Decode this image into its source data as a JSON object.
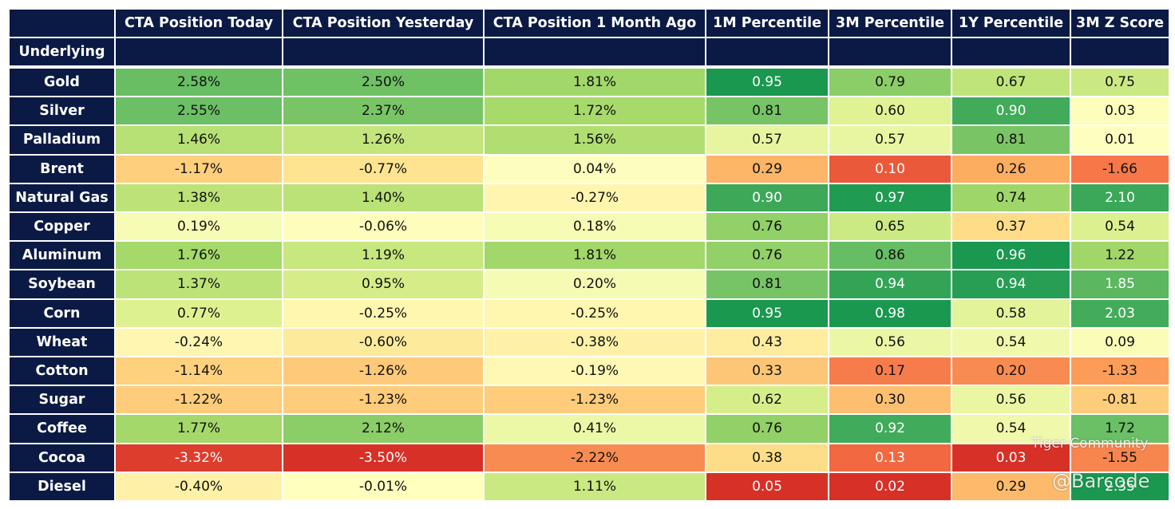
{
  "table": {
    "corner_label": "Underlying",
    "columns": [
      "CTA Position Today",
      "CTA Position Yesterday",
      "CTA Position 1 Month Ago",
      "1M Percentile",
      "3M Percentile",
      "1Y Percentile",
      "3M Z Score"
    ],
    "rows": [
      {
        "label": "Gold",
        "cells": [
          "2.58%",
          "2.50%",
          "1.81%",
          "0.95",
          "0.79",
          "0.67",
          "0.75"
        ]
      },
      {
        "label": "Silver",
        "cells": [
          "2.55%",
          "2.37%",
          "1.72%",
          "0.81",
          "0.60",
          "0.90",
          "0.03"
        ]
      },
      {
        "label": "Palladium",
        "cells": [
          "1.46%",
          "1.26%",
          "1.56%",
          "0.57",
          "0.57",
          "0.81",
          "0.01"
        ]
      },
      {
        "label": "Brent",
        "cells": [
          "-1.17%",
          "-0.77%",
          "0.04%",
          "0.29",
          "0.10",
          "0.26",
          "-1.66"
        ]
      },
      {
        "label": "Natural Gas",
        "cells": [
          "1.38%",
          "1.40%",
          "-0.27%",
          "0.90",
          "0.97",
          "0.74",
          "2.10"
        ]
      },
      {
        "label": "Copper",
        "cells": [
          "0.19%",
          "-0.06%",
          "0.18%",
          "0.76",
          "0.65",
          "0.37",
          "0.54"
        ]
      },
      {
        "label": "Aluminum",
        "cells": [
          "1.76%",
          "1.19%",
          "1.81%",
          "0.76",
          "0.86",
          "0.96",
          "1.22"
        ]
      },
      {
        "label": "Soybean",
        "cells": [
          "1.37%",
          "0.95%",
          "0.20%",
          "0.81",
          "0.94",
          "0.94",
          "1.85"
        ]
      },
      {
        "label": "Corn",
        "cells": [
          "0.77%",
          "-0.25%",
          "-0.25%",
          "0.95",
          "0.98",
          "0.58",
          "2.03"
        ]
      },
      {
        "label": "Wheat",
        "cells": [
          "-0.24%",
          "-0.60%",
          "-0.38%",
          "0.43",
          "0.56",
          "0.54",
          "0.09"
        ]
      },
      {
        "label": "Cotton",
        "cells": [
          "-1.14%",
          "-1.26%",
          "-0.19%",
          "0.33",
          "0.17",
          "0.20",
          "-1.33"
        ]
      },
      {
        "label": "Sugar",
        "cells": [
          "-1.22%",
          "-1.23%",
          "-1.23%",
          "0.62",
          "0.30",
          "0.56",
          "-0.81"
        ]
      },
      {
        "label": "Coffee",
        "cells": [
          "1.77%",
          "2.12%",
          "0.41%",
          "0.76",
          "0.92",
          "0.54",
          "1.72"
        ]
      },
      {
        "label": "Cocoa",
        "cells": [
          "-3.32%",
          "-3.50%",
          "-2.22%",
          "0.38",
          "0.13",
          "0.03",
          "-1.55"
        ]
      },
      {
        "label": "Diesel",
        "cells": [
          "-0.40%",
          "-0.01%",
          "1.11%",
          "0.05",
          "0.02",
          "0.29",
          "2.35"
        ]
      }
    ],
    "watermark": [
      "Tiger Community",
      "@Barcode"
    ]
  }
}
